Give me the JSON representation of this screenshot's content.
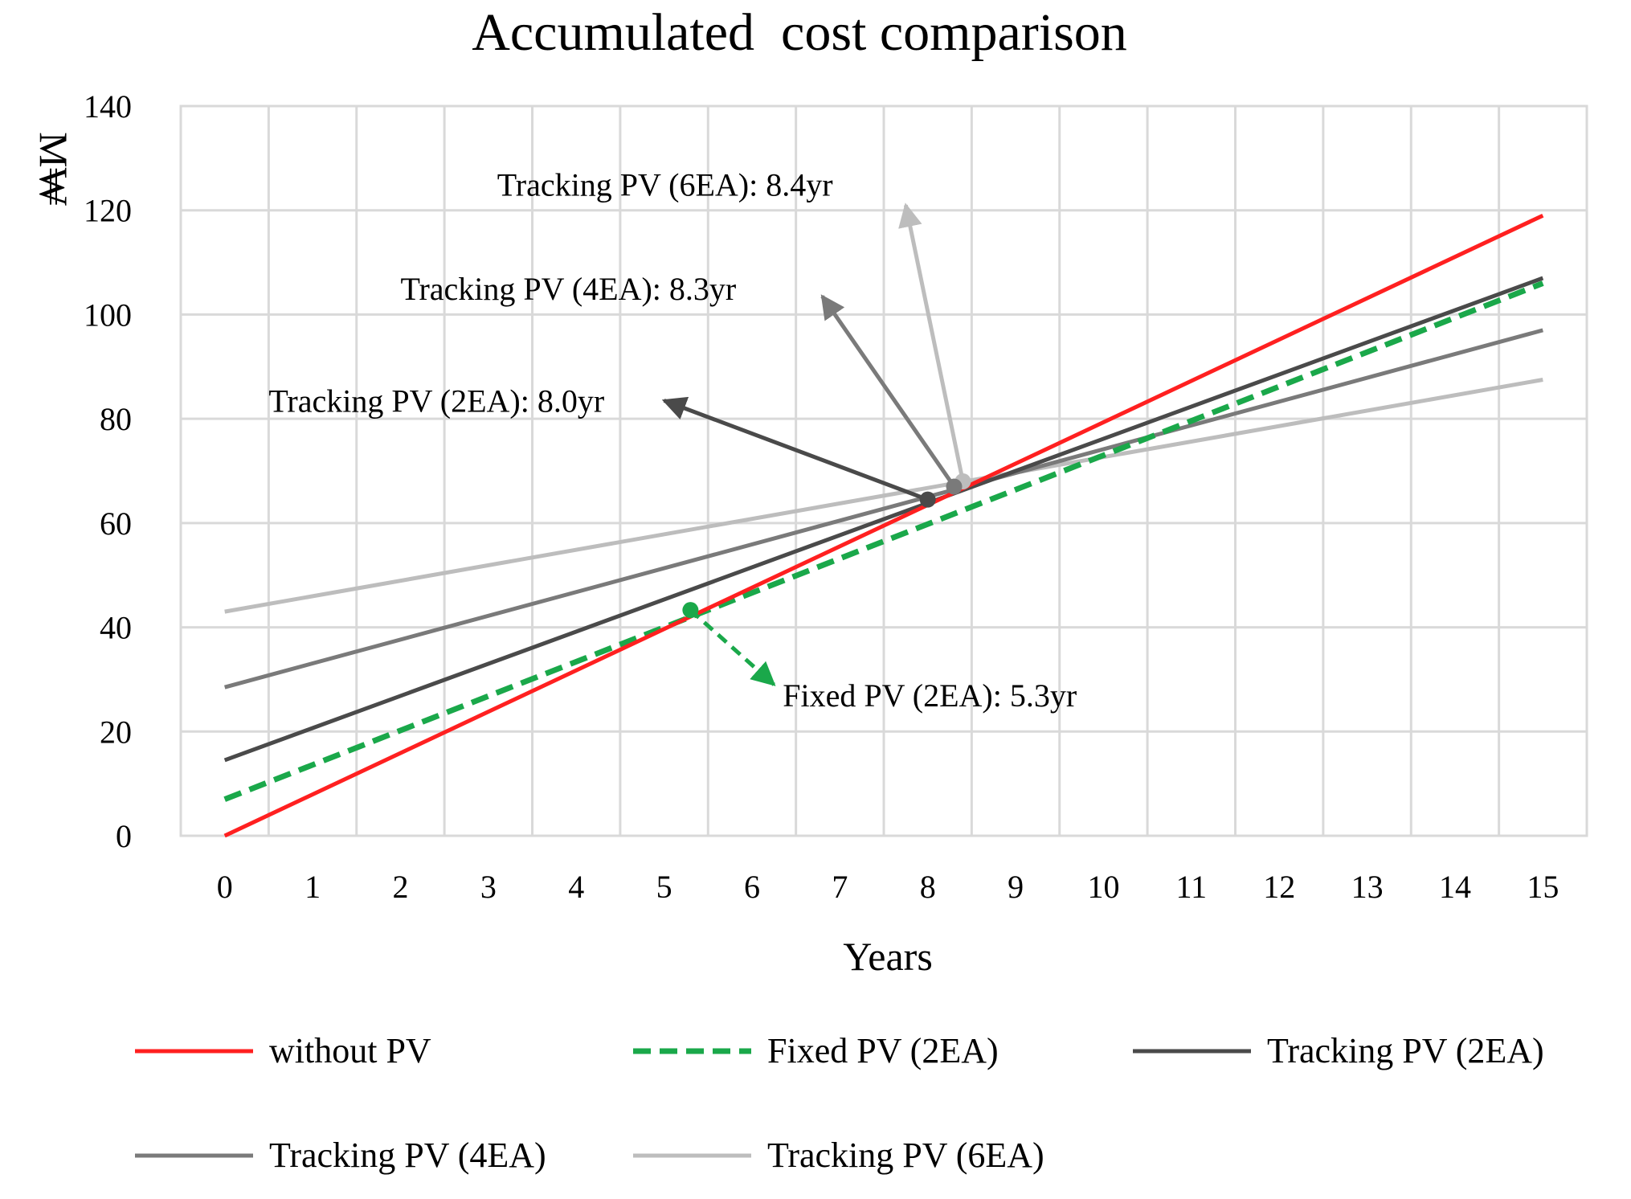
{
  "chart_data": {
    "type": "line",
    "title": "Accumulated  cost comparison",
    "xlabel": "Years",
    "ylabel": "M₩",
    "xlim": [
      0,
      15
    ],
    "ylim": [
      0,
      140
    ],
    "x_ticks": [
      "0",
      "1",
      "2",
      "3",
      "4",
      "5",
      "6",
      "7",
      "8",
      "9",
      "10",
      "11",
      "12",
      "13",
      "14",
      "15"
    ],
    "y_ticks": [
      "0",
      "20",
      "40",
      "60",
      "80",
      "100",
      "120",
      "140"
    ],
    "grid": true,
    "legend_position": "bottom",
    "series": [
      {
        "name": "without PV",
        "color": "#ff2020",
        "dashed": false,
        "x": [
          0,
          15
        ],
        "values": [
          0,
          119
        ]
      },
      {
        "name": "Fixed PV (2EA)",
        "color": "#1aa84a",
        "dashed": true,
        "x": [
          0,
          15
        ],
        "values": [
          7,
          106
        ]
      },
      {
        "name": "Tracking PV (2EA)",
        "color": "#4a4a4a",
        "dashed": false,
        "x": [
          0,
          15
        ],
        "values": [
          14.5,
          107
        ]
      },
      {
        "name": "Tracking PV (4EA)",
        "color": "#7a7a7a",
        "dashed": false,
        "x": [
          0,
          15
        ],
        "values": [
          28.5,
          97
        ]
      },
      {
        "name": "Tracking PV (6EA)",
        "color": "#bdbdbd",
        "dashed": false,
        "x": [
          0,
          15
        ],
        "values": [
          43,
          87.5
        ]
      }
    ],
    "annotations": [
      {
        "text": "Tracking PV (6EA): 8.4yr",
        "color": "#bdbdbd",
        "dashed": false,
        "point": [
          8.4,
          68
        ],
        "arrow_to": [
          7.75,
          121
        ],
        "label_at": [
          3.1,
          125
        ]
      },
      {
        "text": "Tracking PV (4EA): 8.3yr",
        "color": "#7a7a7a",
        "dashed": false,
        "point": [
          8.3,
          67
        ],
        "arrow_to": [
          6.8,
          103.5
        ],
        "label_at": [
          2.0,
          105
        ]
      },
      {
        "text": "Tracking PV (2EA): 8.0yr",
        "color": "#4a4a4a",
        "dashed": false,
        "point": [
          8.0,
          64.5
        ],
        "arrow_to": [
          5.0,
          83.5
        ],
        "label_at": [
          0.5,
          83.5
        ]
      },
      {
        "text": "Fixed PV (2EA): 5.3yr",
        "color": "#1aa84a",
        "dashed": true,
        "point": [
          5.3,
          43.3
        ],
        "arrow_to": [
          6.25,
          29
        ],
        "label_at": [
          6.35,
          27
        ]
      }
    ]
  }
}
